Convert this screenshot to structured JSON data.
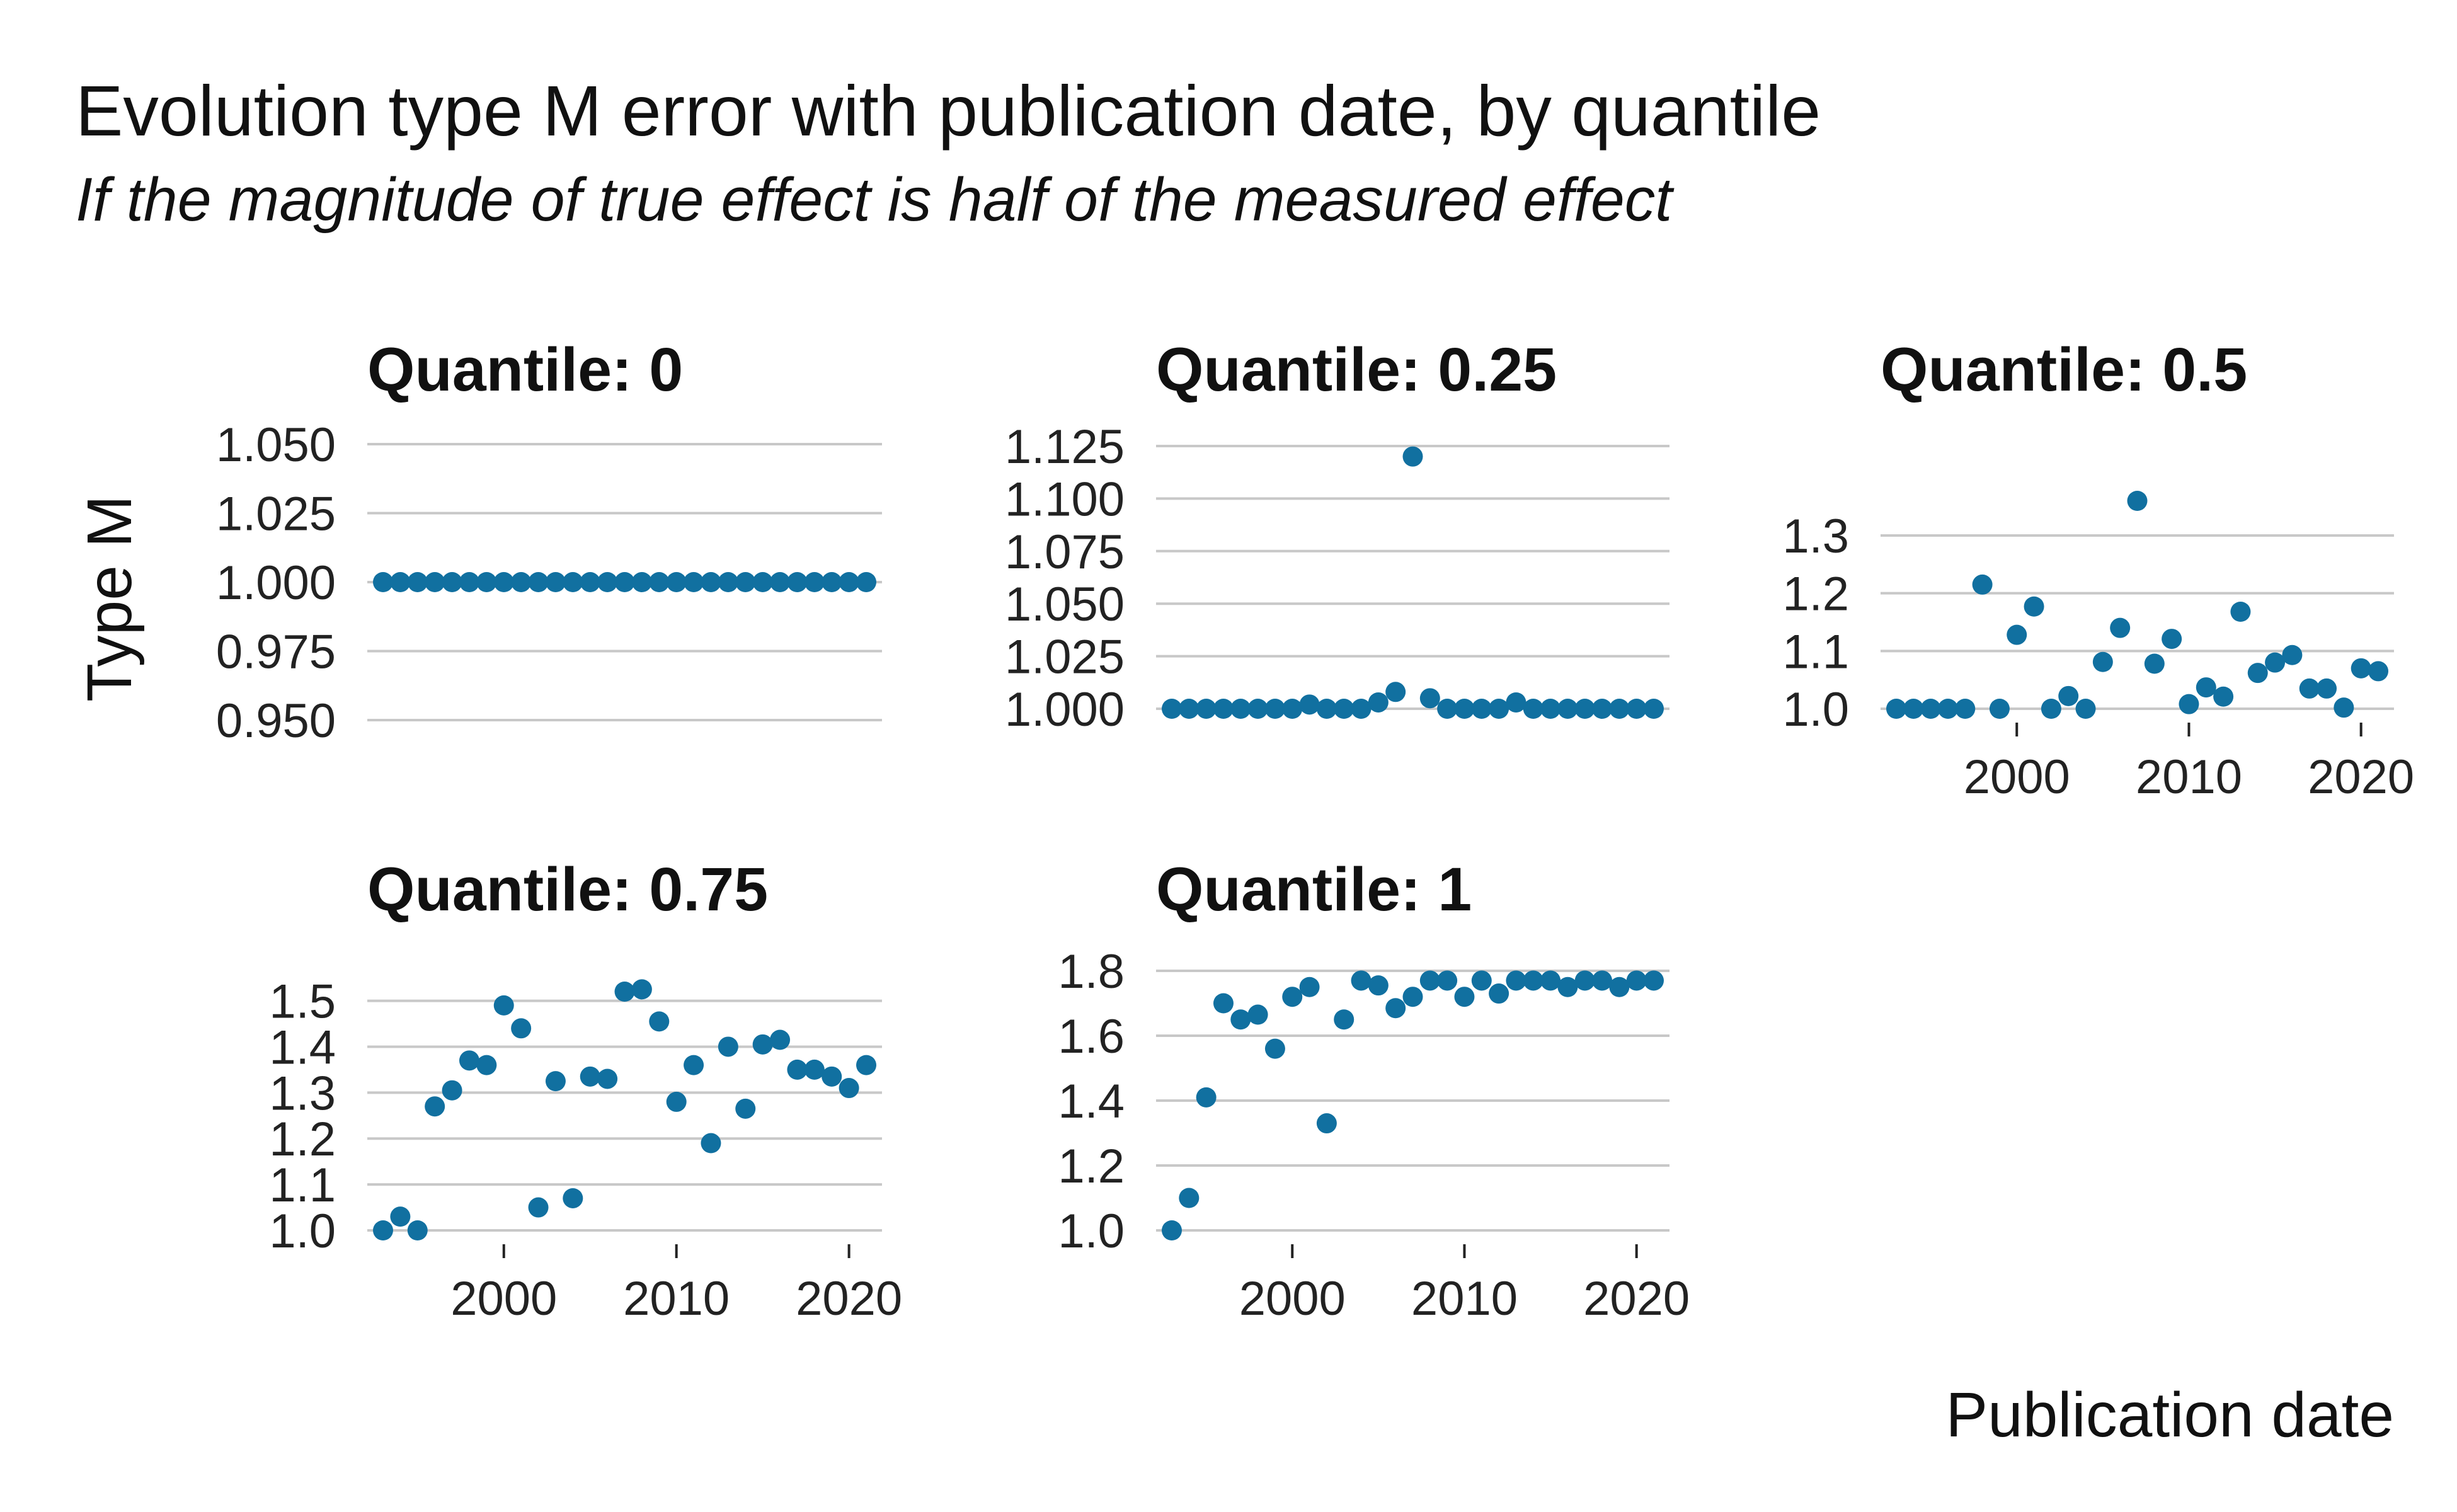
{
  "chart_data": {
    "type": "scatter",
    "title": "Evolution type M error with publication date, by quantile",
    "subtitle": "If the magnitude of true effect is half of the measured effect",
    "ylabel": "Type M",
    "xlabel": "Publication date",
    "point_color": "#1170a0",
    "grid": "horizontal",
    "x": [
      1993,
      1994,
      1995,
      1996,
      1997,
      1998,
      1999,
      2000,
      2001,
      2002,
      2003,
      2004,
      2005,
      2006,
      2007,
      2008,
      2009,
      2010,
      2011,
      2012,
      2013,
      2014,
      2015,
      2016,
      2017,
      2018,
      2019,
      2020,
      2021
    ],
    "panels": [
      {
        "title": "Quantile: 0",
        "ylim": [
          0.95,
          1.05
        ],
        "yticks": [
          0.95,
          0.975,
          1.0,
          1.025,
          1.05
        ],
        "ytick_labels": [
          "0.950",
          "0.975",
          "1.000",
          "1.025",
          "1.050"
        ],
        "xticks": [],
        "xtick_labels": [],
        "values": [
          1.0,
          1.0,
          1.0,
          1.0,
          1.0,
          1.0,
          1.0,
          1.0,
          1.0,
          1.0,
          1.0,
          1.0,
          1.0,
          1.0,
          1.0,
          1.0,
          1.0,
          1.0,
          1.0,
          1.0,
          1.0,
          1.0,
          1.0,
          1.0,
          1.0,
          1.0,
          1.0,
          1.0,
          1.0
        ]
      },
      {
        "title": "Quantile: 0.25",
        "ylim": [
          1.0,
          1.125
        ],
        "yticks": [
          1.0,
          1.025,
          1.05,
          1.075,
          1.1,
          1.125
        ],
        "ytick_labels": [
          "1.000",
          "1.025",
          "1.050",
          "1.075",
          "1.100",
          "1.125"
        ],
        "xticks": [],
        "xtick_labels": [],
        "values": [
          1.0,
          1.0,
          1.0,
          1.0,
          1.0,
          1.0,
          1.0,
          1.0,
          1.002,
          1.0,
          1.0,
          1.0,
          1.003,
          1.008,
          1.12,
          1.005,
          1.0,
          1.0,
          1.0,
          1.0,
          1.003,
          1.0,
          1.0,
          1.0,
          1.0,
          1.0,
          1.0,
          1.0,
          1.0
        ]
      },
      {
        "title": "Quantile: 0.5",
        "ylim": [
          1.0,
          1.36
        ],
        "yticks": [
          1.0,
          1.1,
          1.2,
          1.3
        ],
        "ytick_labels": [
          "1.0",
          "1.1",
          "1.2",
          "1.3"
        ],
        "xticks": [
          2000,
          2010,
          2020
        ],
        "xtick_labels": [
          "2000",
          "2010",
          "2020"
        ],
        "values": [
          1.0,
          1.0,
          1.0,
          1.0,
          1.0,
          1.215,
          1.0,
          1.128,
          1.177,
          1.0,
          1.022,
          1.0,
          1.081,
          1.14,
          1.36,
          1.078,
          1.121,
          1.008,
          1.037,
          1.021,
          1.168,
          1.062,
          1.08,
          1.093,
          1.035,
          1.035,
          1.002,
          1.07,
          1.065
        ]
      },
      {
        "title": "Quantile: 0.75",
        "ylim": [
          1.0,
          1.52
        ],
        "yticks": [
          1.0,
          1.1,
          1.2,
          1.3,
          1.4,
          1.5
        ],
        "ytick_labels": [
          "1.0",
          "1.1",
          "1.2",
          "1.3",
          "1.4",
          "1.5"
        ],
        "xticks": [
          2000,
          2010,
          2020
        ],
        "xtick_labels": [
          "2000",
          "2010",
          "2020"
        ],
        "values": [
          1.0,
          1.03,
          1.0,
          1.27,
          1.305,
          1.37,
          1.36,
          1.49,
          1.44,
          1.05,
          1.325,
          1.07,
          1.335,
          1.33,
          1.52,
          1.525,
          1.455,
          1.28,
          1.36,
          1.19,
          1.4,
          1.265,
          1.405,
          1.415,
          1.35,
          1.35,
          1.335,
          1.31,
          1.36
        ]
      },
      {
        "title": "Quantile: 1",
        "ylim": [
          1.0,
          1.8
        ],
        "yticks": [
          1.0,
          1.2,
          1.4,
          1.6,
          1.8
        ],
        "ytick_labels": [
          "1.0",
          "1.2",
          "1.4",
          "1.6",
          "1.8"
        ],
        "xticks": [
          2000,
          2010,
          2020
        ],
        "xtick_labels": [
          "2000",
          "2010",
          "2020"
        ],
        "values": [
          1.0,
          1.1,
          1.41,
          1.7,
          1.65,
          1.665,
          1.56,
          1.72,
          1.75,
          1.33,
          1.65,
          1.77,
          1.755,
          1.685,
          1.72,
          1.77,
          1.77,
          1.72,
          1.77,
          1.73,
          1.77,
          1.77,
          1.77,
          1.75,
          1.77,
          1.77,
          1.75,
          1.77,
          1.77
        ]
      }
    ]
  }
}
